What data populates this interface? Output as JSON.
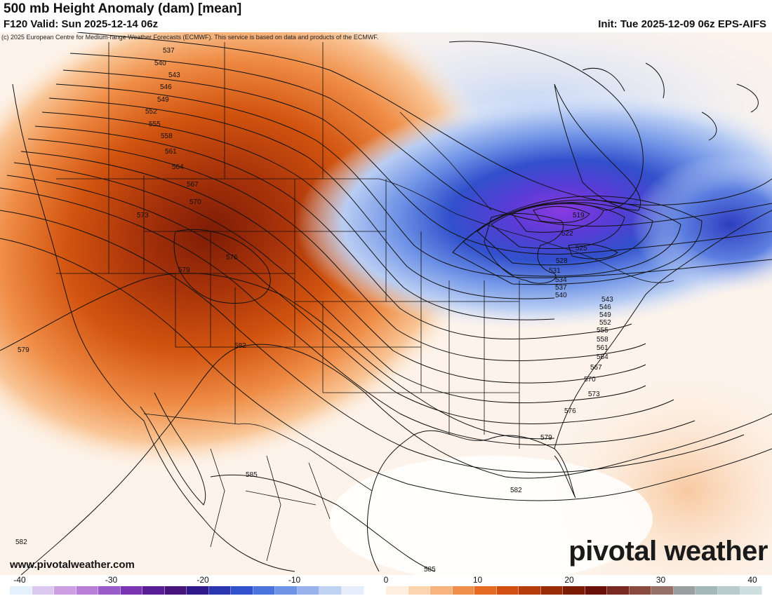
{
  "header": {
    "title": "500 mb Height Anomaly (dam) [mean]",
    "valid": "F120 Valid: Sun 2025-12-14 06z",
    "init": "Init: Tue 2025-12-09 06z EPS-AIFS",
    "copyright": "(c) 2025 European Centre for Medium-range Weather Forecasts (ECMWF). This service is based on data and products of the ECMWF."
  },
  "footer": {
    "website": "www.pivotalweather.com",
    "brand": "pivotal weather"
  },
  "colorbar": {
    "ticks": [
      "-40",
      "-30",
      "-20",
      "-10",
      "0",
      "10",
      "20",
      "30",
      "40"
    ],
    "colors": [
      "#e4f0fb",
      "#dcc9f0",
      "#cc9fe3",
      "#b97fd8",
      "#9a5cc9",
      "#7a35b3",
      "#5a1f97",
      "#45137a",
      "#2e1a8a",
      "#2c35b0",
      "#3050cc",
      "#4a73dd",
      "#6f93e6",
      "#98b2ee",
      "#c0d3f5",
      "#e6eefb",
      "#ffffff",
      "#fdeee0",
      "#fbd4b0",
      "#f7b47e",
      "#f08f4c",
      "#e56b24",
      "#d14f10",
      "#b73c0b",
      "#9b2c08",
      "#7d1c05",
      "#6a1008",
      "#7a2a20",
      "#8a4a40",
      "#947069",
      "#9aa0a0",
      "#a3b8b8",
      "#b8cccc",
      "#cfdede"
    ],
    "unit": "dam"
  },
  "map": {
    "anomaly_centers": [
      {
        "sign": "positive",
        "value": 22,
        "location": "Great Basin / Intermountain West"
      },
      {
        "sign": "negative",
        "value": -30,
        "location": "Great Lakes / Ontario"
      }
    ],
    "contour_labels": [
      "537",
      "540",
      "543",
      "546",
      "549",
      "552",
      "555",
      "558",
      "561",
      "564",
      "567",
      "570",
      "573",
      "576",
      "579",
      "582",
      "579",
      "519",
      "522",
      "525",
      "528",
      "531",
      "534",
      "537",
      "540",
      "543",
      "546",
      "549",
      "552",
      "555",
      "558",
      "561",
      "564",
      "567",
      "570",
      "573",
      "576",
      "579",
      "582",
      "582",
      "585",
      "585"
    ]
  }
}
